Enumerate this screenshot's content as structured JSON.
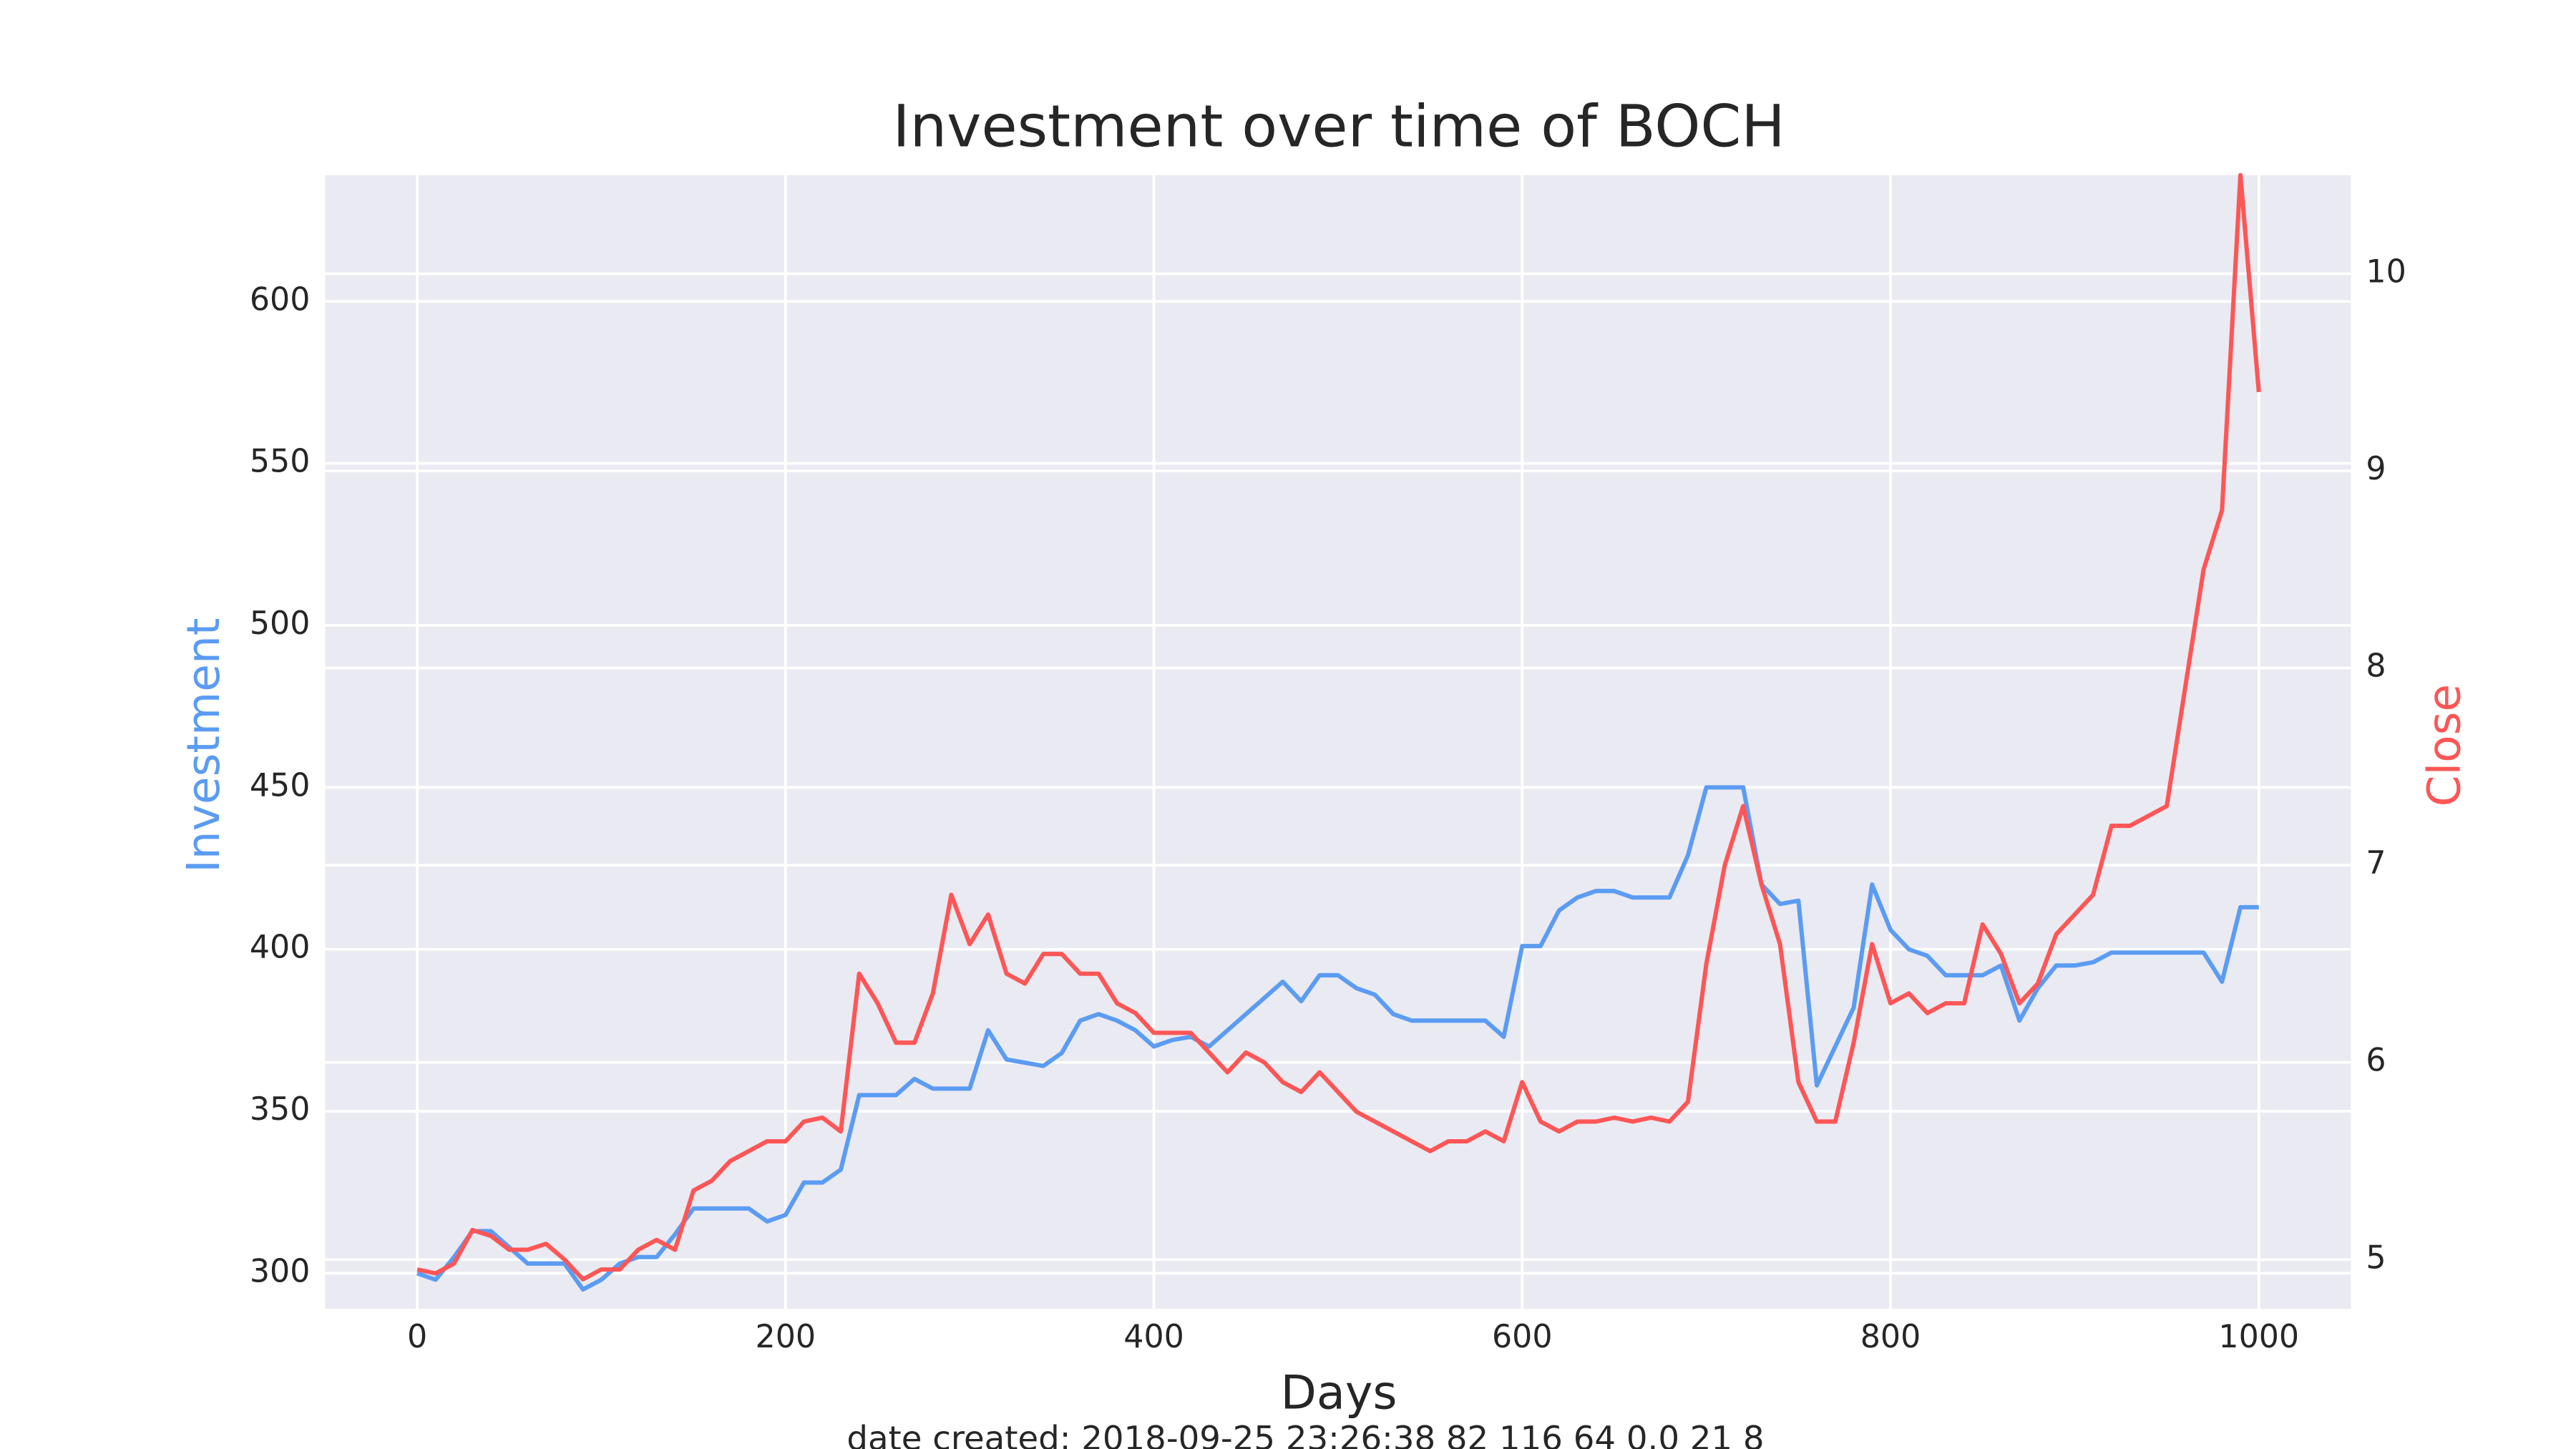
{
  "chart_data": {
    "type": "line",
    "title": "Investment over time of BOCH",
    "xlabel": "Days",
    "ylabel": "Investment",
    "y2label": "Close",
    "caption": "date created: 2018-09-25 23:26:38 82 116 64 0.0 21 8",
    "x": [
      0,
      10,
      20,
      30,
      40,
      50,
      60,
      70,
      80,
      90,
      100,
      110,
      120,
      130,
      140,
      150,
      160,
      170,
      180,
      190,
      200,
      210,
      220,
      230,
      240,
      250,
      260,
      270,
      280,
      290,
      300,
      310,
      320,
      330,
      340,
      350,
      360,
      370,
      380,
      390,
      400,
      410,
      420,
      430,
      440,
      450,
      460,
      470,
      480,
      490,
      500,
      510,
      520,
      530,
      540,
      550,
      560,
      570,
      580,
      590,
      600,
      610,
      620,
      630,
      640,
      650,
      660,
      670,
      680,
      690,
      700,
      710,
      720,
      730,
      740,
      750,
      760,
      770,
      780,
      790,
      800,
      810,
      820,
      830,
      840,
      850,
      860,
      870,
      880,
      890,
      900,
      910,
      920,
      930,
      940,
      950,
      960,
      970,
      980,
      990,
      1000
    ],
    "series": [
      {
        "color": "#5b9cf2",
        "values": [
          300,
          298,
          305,
          313,
          313,
          308,
          303,
          303,
          303,
          295,
          298,
          303,
          305,
          305,
          312,
          320,
          320,
          320,
          320,
          316,
          318,
          328,
          328,
          332,
          355,
          355,
          355,
          360,
          357,
          357,
          357,
          375,
          366,
          365,
          364,
          368,
          378,
          380,
          378,
          375,
          370,
          372,
          373,
          370,
          375,
          380,
          385,
          390,
          384,
          392,
          392,
          388,
          386,
          380,
          378,
          378,
          378,
          378,
          378,
          373,
          401,
          401,
          412,
          416,
          418,
          418,
          416,
          416,
          416,
          429,
          450,
          450,
          450,
          420,
          414,
          415,
          358,
          370,
          382,
          420,
          406,
          400,
          398,
          392,
          392,
          392,
          395,
          378,
          388,
          395,
          395,
          396,
          399,
          399,
          399,
          399,
          399,
          399,
          390,
          413,
          413
        ]
      },
      {
        "color": "#fd5656",
        "axis": "y2",
        "values": [
          4.95,
          4.93,
          4.98,
          5.15,
          5.12,
          5.05,
          5.05,
          5.08,
          5.0,
          4.9,
          4.95,
          4.95,
          5.05,
          5.1,
          5.05,
          5.35,
          5.4,
          5.5,
          5.55,
          5.6,
          5.6,
          5.7,
          5.72,
          5.65,
          6.45,
          6.3,
          6.1,
          6.1,
          6.35,
          6.85,
          6.6,
          6.75,
          6.45,
          6.4,
          6.55,
          6.55,
          6.45,
          6.45,
          6.3,
          6.25,
          6.15,
          6.15,
          6.15,
          6.05,
          5.95,
          6.05,
          6.0,
          5.9,
          5.85,
          5.95,
          5.85,
          5.75,
          5.7,
          5.65,
          5.6,
          5.55,
          5.6,
          5.6,
          5.65,
          5.6,
          5.9,
          5.7,
          5.65,
          5.7,
          5.7,
          5.72,
          5.7,
          5.72,
          5.7,
          5.8,
          6.5,
          7.0,
          7.3,
          6.9,
          6.6,
          5.9,
          5.7,
          5.7,
          6.1,
          6.6,
          6.3,
          6.35,
          6.25,
          6.3,
          6.3,
          6.7,
          6.55,
          6.3,
          6.4,
          6.65,
          6.75,
          6.85,
          7.2,
          7.2,
          7.25,
          7.3,
          7.9,
          8.5,
          8.8,
          10.5,
          9.4
        ]
      }
    ],
    "xlim": [
      -50,
      1050
    ],
    "xticks": [
      0,
      200,
      400,
      600,
      800,
      1000
    ],
    "ylim": [
      289,
      639
    ],
    "yticks": [
      300,
      350,
      400,
      450,
      500,
      550,
      600
    ],
    "y2lim": [
      4.75,
      10.5
    ],
    "y2ticks": [
      5,
      6,
      7,
      8,
      9,
      10
    ],
    "grid": true,
    "background": "#eaeaf2"
  }
}
